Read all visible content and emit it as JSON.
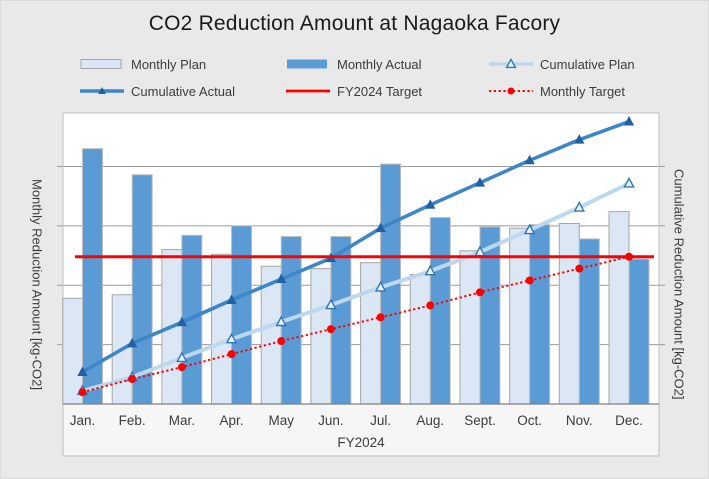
{
  "title": "CO2 Reduction Amount at Nagaoka Facory",
  "axes": {
    "x_title": "FY2024",
    "left_title": "Monthly Reduction Amount [kg-CO2]",
    "right_title": "Cumulative Reduction Amount [kg-CO2]"
  },
  "legend": {
    "items": [
      {
        "key": "monthly-plan",
        "label": "Monthly Plan",
        "swatch": "bar-plan"
      },
      {
        "key": "monthly-actual",
        "label": "Monthly Actual",
        "swatch": "bar-actual"
      },
      {
        "key": "cumulative-plan",
        "label": "Cumulative Plan",
        "swatch": "line-open-triangle"
      },
      {
        "key": "cumulative-actual",
        "label": "Cumulative Actual",
        "swatch": "line-filled-triangle"
      },
      {
        "key": "fy2024-target",
        "label": "FY2024 Target",
        "swatch": "line-solid"
      },
      {
        "key": "monthly-target",
        "label": "Monthly Target",
        "swatch": "line-dotted"
      }
    ]
  },
  "chart_data": {
    "type": "combo",
    "categories": [
      "Jan.",
      "Feb.",
      "Mar.",
      "Apr.",
      "May",
      "Jun.",
      "Jul.",
      "Aug.",
      "Sept.",
      "Oct.",
      "Nov.",
      "Dec."
    ],
    "x_title": "FY2024",
    "left_axis": {
      "label": "Monthly Reduction Amount [kg-CO2]",
      "min": 0,
      "max": 245,
      "grid_interval": 50,
      "tick_labels_shown": false
    },
    "right_axis": {
      "label": "Cumulative Reduction Amount [kg-CO2]",
      "min": 0,
      "max": 1960,
      "grid_interval": 400,
      "tick_labels_shown": false
    },
    "grid": true,
    "legend_position": "top",
    "series": [
      {
        "name": "Monthly Plan",
        "type": "bar",
        "axis": "left",
        "values": [
          89,
          92,
          130,
          126,
          116,
          114,
          119,
          109,
          129,
          148,
          152,
          162
        ]
      },
      {
        "name": "Monthly Actual",
        "type": "bar",
        "axis": "left",
        "values": [
          215,
          193,
          142,
          150,
          141,
          141,
          202,
          157,
          149,
          151,
          139,
          122
        ]
      },
      {
        "name": "Cumulative Plan",
        "type": "line",
        "axis": "right",
        "marker": "open-triangle",
        "values": [
          89,
          181,
          311,
          437,
          553,
          667,
          786,
          895,
          1024,
          1172,
          1324,
          1486
        ]
      },
      {
        "name": "Cumulative Actual",
        "type": "line",
        "axis": "right",
        "marker": "filled-triangle",
        "values": [
          215,
          408,
          550,
          700,
          841,
          982,
          1184,
          1341,
          1490,
          1641,
          1780,
          1902
        ]
      },
      {
        "name": "FY2024 Target",
        "type": "line",
        "axis": "left",
        "constant": 124
      },
      {
        "name": "Monthly Target",
        "type": "line",
        "axis": "left",
        "marker": "circle",
        "style": "dotted",
        "values": [
          10,
          21,
          31,
          42,
          53,
          63,
          73,
          83,
          94,
          104,
          114,
          124
        ]
      }
    ]
  },
  "colors": {
    "background": "#e9e9e9",
    "plot_background": "#ffffff",
    "band_background": "#f6f6f6",
    "grid": "#9a9a9a",
    "border": "#bfbfbf",
    "axis_line": "#7f7f7f",
    "monthly_plan_fill": "#dbe7f5",
    "monthly_plan_border": "#a6a6a6",
    "monthly_actual_fill": "#5b9bd5",
    "monthly_actual_border": "#bdbdbd",
    "cumulative_plan_line": "#bdd7ee",
    "cumulative_plan_marker_stroke": "#2e75b6",
    "cumulative_plan_marker_fill": "#ecf3fa",
    "cumulative_actual_line": "#3e86c8",
    "cumulative_actual_marker": "#2361a5",
    "target_red": "#fe0000",
    "text": "#3c3c3c"
  }
}
